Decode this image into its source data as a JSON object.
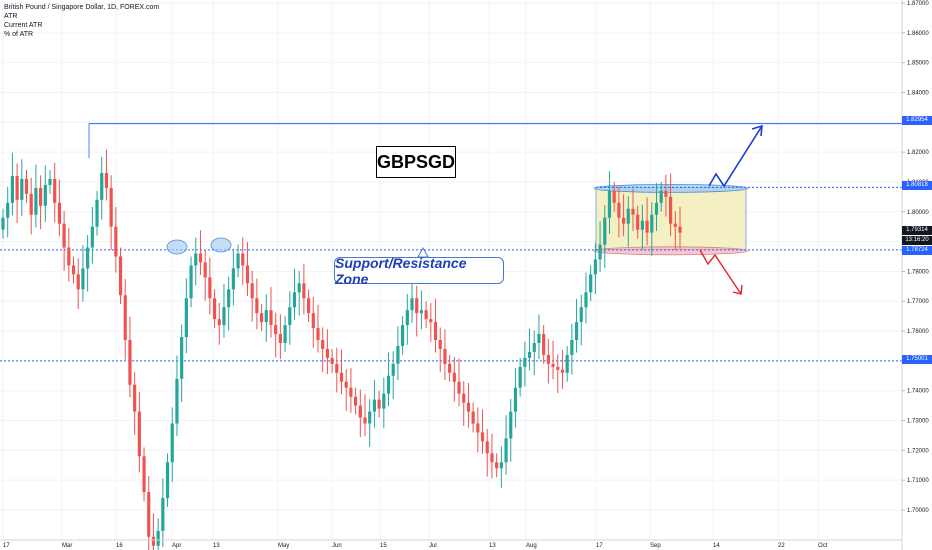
{
  "legend": {
    "symbol_line": "British Pound / Singapore Dollar, 1D, FOREX.com",
    "line2": "ATR",
    "line3": "Current ATR",
    "line4": "% of ATR"
  },
  "annotations": {
    "title": "GBPSGD",
    "zone_label": "Support/Resistance Zone"
  },
  "price_tags": {
    "resistance_high": "1.82954",
    "zone_top": "1.80818",
    "last_price": "1.79314",
    "countdown": "13:16:20",
    "zone_bottom": "1.78724",
    "support_low": "1.75001"
  },
  "colors": {
    "up_candle": "#26a69a",
    "down_candle": "#ef5350",
    "hline_blue": "#2962ff",
    "zone_fill": "#f5efc4",
    "arrow_up": "#1f3bd6",
    "arrow_down": "#e0242b"
  },
  "chart_data": {
    "type": "candlestick",
    "title": "GBPSGD",
    "symbol": "British Pound / Singapore Dollar",
    "timeframe": "1D",
    "source": "FOREX.com",
    "y_axis": {
      "ticks": [
        "1.87000",
        "1.86000",
        "1.85000",
        "1.84000",
        "1.83000",
        "1.82000",
        "1.81000",
        "1.80000",
        "1.79000",
        "1.78000",
        "1.77000",
        "1.76000",
        "1.75000",
        "1.74000",
        "1.73000",
        "1.72000",
        "1.71000",
        "1.70000"
      ],
      "ylim": [
        1.693,
        1.875
      ]
    },
    "x_axis": {
      "ticks": [
        "17",
        "Mar",
        "16",
        "Apr",
        "13",
        "May",
        "Jun",
        "15",
        "Jul",
        "13",
        "Aug",
        "17",
        "Sep",
        "14",
        "22",
        "Oct"
      ]
    },
    "horizontal_levels": [
      1.82954,
      1.80818,
      1.78724,
      1.75001
    ],
    "zone": {
      "top": 1.80818,
      "bottom": 1.78724
    },
    "last_price": 1.79314,
    "ohlc_close_series": [
      1.798,
      1.803,
      1.812,
      1.804,
      1.811,
      1.806,
      1.799,
      1.808,
      1.802,
      1.809,
      1.811,
      1.803,
      1.796,
      1.788,
      1.782,
      1.779,
      1.774,
      1.781,
      1.788,
      1.795,
      1.804,
      1.813,
      1.808,
      1.795,
      1.785,
      1.772,
      1.757,
      1.742,
      1.733,
      1.718,
      1.706,
      1.691,
      1.688,
      1.693,
      1.704,
      1.716,
      1.729,
      1.744,
      1.758,
      1.771,
      1.782,
      1.786,
      1.783,
      1.778,
      1.771,
      1.764,
      1.762,
      1.768,
      1.774,
      1.781,
      1.786,
      1.782,
      1.776,
      1.771,
      1.766,
      1.763,
      1.767,
      1.762,
      1.759,
      1.756,
      1.762,
      1.768,
      1.773,
      1.776,
      1.771,
      1.766,
      1.761,
      1.757,
      1.754,
      1.751,
      1.749,
      1.746,
      1.743,
      1.741,
      1.738,
      1.735,
      1.731,
      1.729,
      1.733,
      1.737,
      1.734,
      1.739,
      1.745,
      1.749,
      1.755,
      1.762,
      1.767,
      1.771,
      1.766,
      1.767,
      1.764,
      1.763,
      1.757,
      1.754,
      1.749,
      1.746,
      1.743,
      1.739,
      1.736,
      1.733,
      1.729,
      1.726,
      1.723,
      1.719,
      1.716,
      1.714,
      1.716,
      1.724,
      1.733,
      1.741,
      1.748,
      1.751,
      1.753,
      1.756,
      1.759,
      1.752,
      1.749,
      1.748,
      1.747,
      1.746,
      1.752,
      1.757,
      1.763,
      1.768,
      1.773,
      1.779,
      1.784,
      1.789,
      1.798,
      1.807,
      1.803,
      1.798,
      1.796,
      1.801,
      1.799,
      1.794,
      1.797,
      1.793,
      1.799,
      1.803,
      1.807,
      1.805,
      1.796,
      1.795,
      1.793
    ]
  }
}
